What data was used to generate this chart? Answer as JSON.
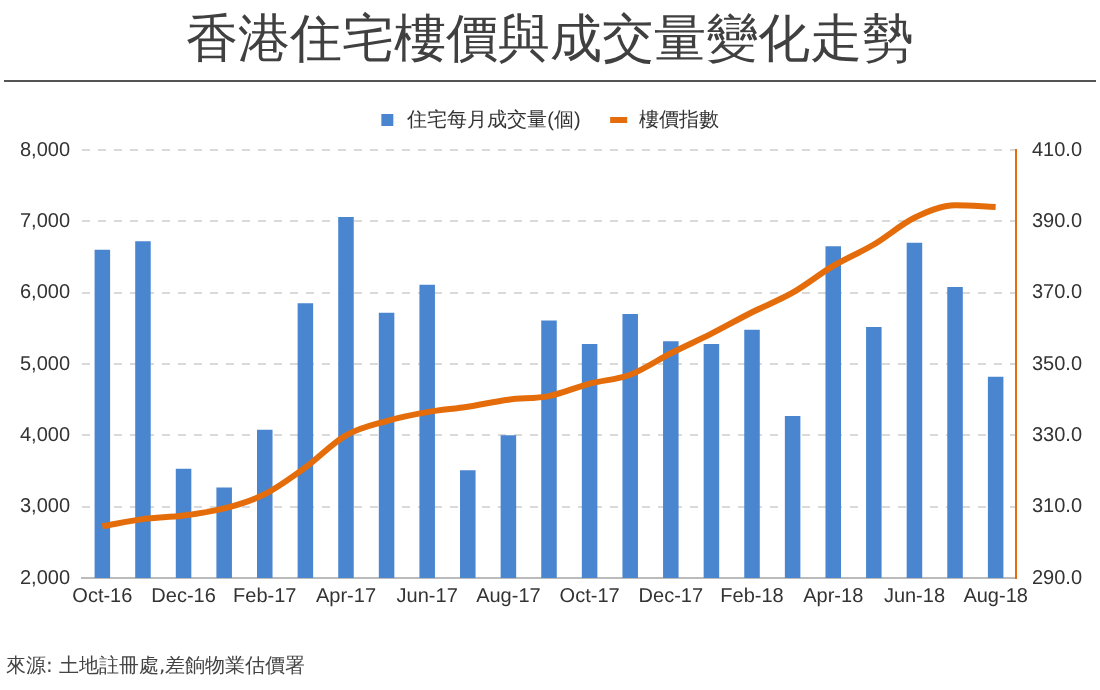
{
  "chart_data": {
    "type": "bar",
    "title": "香港住宅樓價與成交量變化走勢",
    "categories": [
      "Oct-16",
      null,
      "Dec-16",
      null,
      "Feb-17",
      null,
      "Apr-17",
      null,
      "Jun-17",
      null,
      "Aug-17",
      null,
      "Oct-17",
      null,
      "Dec-17",
      null,
      "Feb-18",
      null,
      "Apr-18",
      null,
      "Jun-18",
      null,
      "Aug-18"
    ],
    "series": [
      {
        "name": "住宅每月成交量(個)",
        "color": "#4a86d0",
        "values": [
          6600,
          6720,
          3530,
          3270,
          4080,
          5850,
          7060,
          5720,
          6110,
          3510,
          4000,
          5610,
          5280,
          5700,
          5320,
          5280,
          5480,
          4270,
          6650,
          5520,
          6700,
          6080,
          4820
        ]
      },
      {
        "name": "樓價指數",
        "type": "line",
        "axis": "y2",
        "color": "#e46c0a",
        "values": [
          304.5,
          306.5,
          307.5,
          309.5,
          313.5,
          321,
          330,
          334,
          336.5,
          338,
          340,
          341,
          344.5,
          347,
          353,
          358.5,
          364.5,
          370,
          377.5,
          383.5,
          391,
          394.5,
          394
        ]
      }
    ],
    "ylim": [
      2000,
      8000
    ],
    "yticks": [
      {
        "value": 2000,
        "label": "2,000"
      },
      {
        "value": 3000,
        "label": "3,000"
      },
      {
        "value": 4000,
        "label": "4,000"
      },
      {
        "value": 5000,
        "label": "5,000"
      },
      {
        "value": 6000,
        "label": "6,000"
      },
      {
        "value": 7000,
        "label": "7,000"
      },
      {
        "value": 8000,
        "label": "8,000"
      }
    ],
    "y2lim": [
      290,
      410
    ],
    "y2ticks": [
      {
        "value": 290,
        "label": "290.0"
      },
      {
        "value": 310,
        "label": "310.0"
      },
      {
        "value": 330,
        "label": "330.0"
      },
      {
        "value": 350,
        "label": "350.0"
      },
      {
        "value": 370,
        "label": "370.0"
      },
      {
        "value": 390,
        "label": "390.0"
      },
      {
        "value": 410,
        "label": "410.0"
      }
    ],
    "grid": "y",
    "legend": "top",
    "marker": "none",
    "annotations": [
      "來源: 土地註冊處,差餉物業估價署"
    ]
  }
}
